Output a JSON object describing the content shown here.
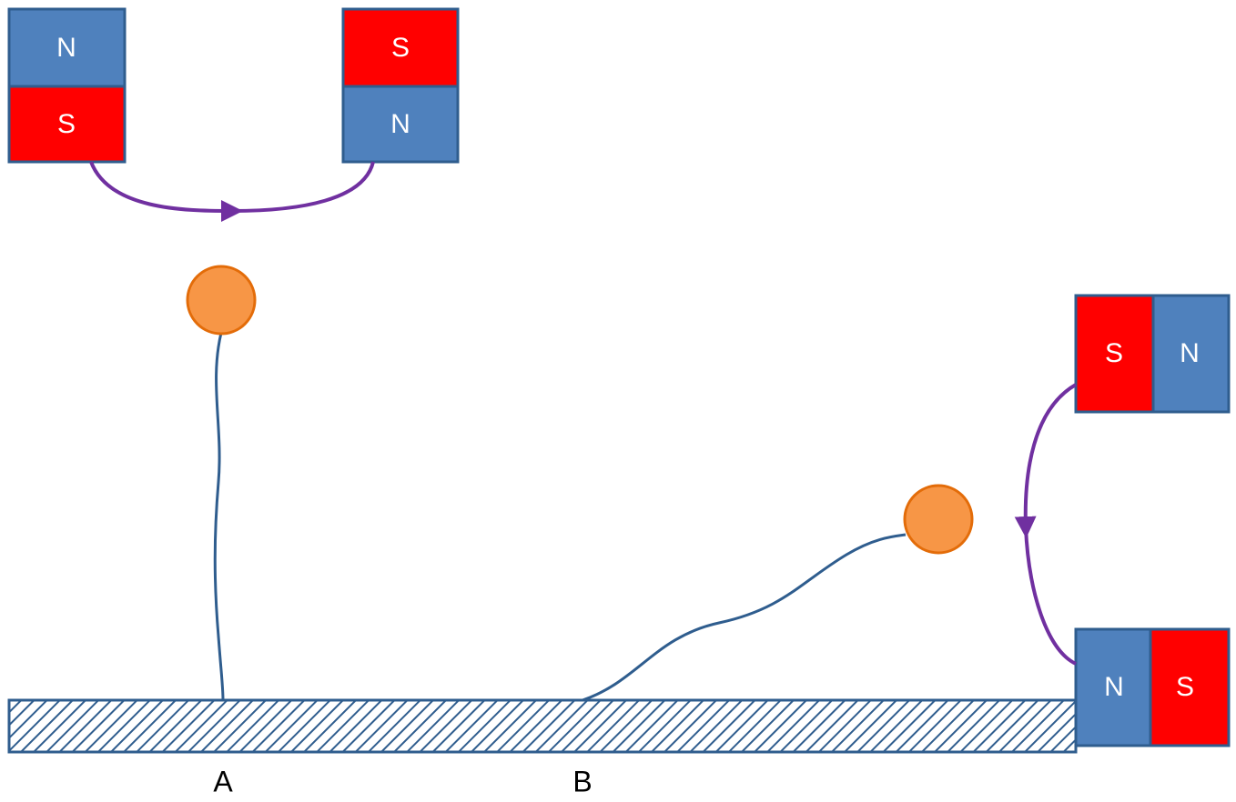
{
  "magnets": [
    {
      "poles": [
        "N",
        "S"
      ]
    },
    {
      "poles": [
        "S",
        "N"
      ]
    },
    {
      "poles": [
        "S",
        "N"
      ]
    },
    {
      "poles": [
        "N",
        "S"
      ]
    }
  ],
  "labels": [
    "A",
    "B"
  ]
}
